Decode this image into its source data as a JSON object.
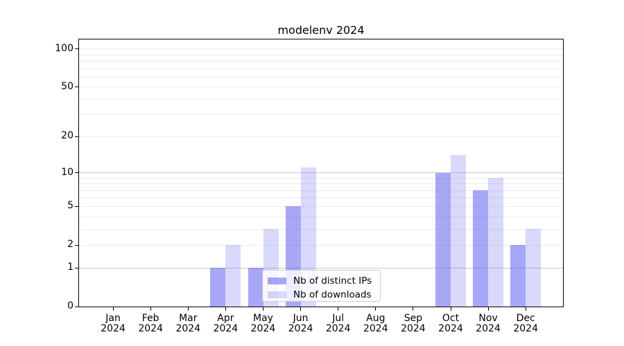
{
  "chart_data": {
    "type": "bar",
    "title": "modelenv 2024",
    "categories": [
      "Jan",
      "Feb",
      "Mar",
      "Apr",
      "May",
      "Jun",
      "Jul",
      "Aug",
      "Sep",
      "Oct",
      "Nov",
      "Dec"
    ],
    "year_label": "2024",
    "series": [
      {
        "name": "Nb of distinct IPs",
        "color": "rgba(80,80,240,0.5)",
        "values": [
          0,
          0,
          0,
          1,
          1,
          5,
          0,
          0,
          0,
          10,
          7,
          2
        ]
      },
      {
        "name": "Nb of downloads",
        "color": "rgba(80,80,240,0.22)",
        "values": [
          0,
          0,
          0,
          2,
          3,
          11,
          0,
          0,
          0,
          14,
          9,
          3
        ]
      }
    ],
    "yscale": "log10(1+v)",
    "ylim": [
      0,
      118
    ],
    "ytick_values": [
      0,
      1,
      2,
      5,
      10,
      20,
      50,
      100
    ],
    "ytick_labels": [
      "0",
      "1",
      "2",
      "5",
      "10",
      "20",
      "50",
      "100"
    ],
    "grid": {
      "minor_values": [
        2,
        3,
        4,
        5,
        6,
        7,
        8,
        9,
        20,
        30,
        40,
        50,
        60,
        70,
        80,
        90,
        100
      ],
      "major_values": [
        1,
        10
      ],
      "minor_color": "#ececec",
      "major_color": "#c8c8c8"
    },
    "legend": {
      "position": "lower center",
      "entries": [
        {
          "label": "Nb of distinct IPs",
          "color": "rgba(80,80,240,0.5)"
        },
        {
          "label": "Nb of downloads",
          "color": "rgba(80,80,240,0.22)"
        }
      ]
    },
    "axis_color": "#000000",
    "background": "#ffffff"
  }
}
